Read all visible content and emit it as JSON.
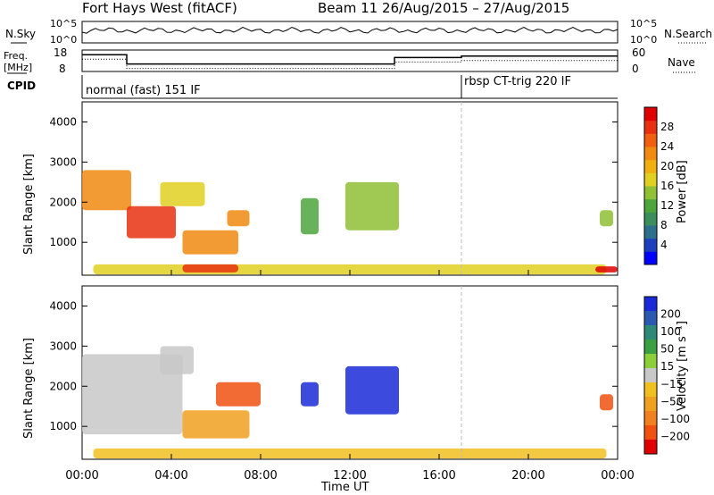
{
  "header": {
    "title": "Fort Hays West (fitACF)",
    "beam_info": "Beam 11 26/Aug/2015 – 27/Aug/2015"
  },
  "top_panels": {
    "nsky_label": "N.Sky",
    "nsearch_label": "N.Search",
    "freq_label_1": "Freq.",
    "freq_label_2": "[MHz]",
    "nave_label": "Nave",
    "cpid_label": "CPID",
    "noise_ticks": [
      "10^5",
      "10^0"
    ],
    "freq_ticks": [
      "18",
      "8"
    ],
    "nave_ticks": [
      "60",
      "0"
    ],
    "cpid_segments": [
      {
        "label": "normal (fast) 151 IF",
        "start_hour": 0
      },
      {
        "label": "rbsp CT-trig 220 IF",
        "start_hour": 17
      }
    ]
  },
  "axes": {
    "x_label": "Time UT",
    "x_ticks": [
      "00:00",
      "04:00",
      "08:00",
      "12:00",
      "16:00",
      "20:00",
      "00:00"
    ],
    "y_label": "Slant Range [km]",
    "y_ticks": [
      "1000",
      "2000",
      "3000",
      "4000"
    ]
  },
  "colorbars": {
    "power": {
      "label": "Power [dB]",
      "ticks": [
        "4",
        "8",
        "12",
        "16",
        "20",
        "24",
        "28"
      ],
      "colors": [
        "#0000ff",
        "#1d3fbd",
        "#2e6f8e",
        "#3a8f5a",
        "#4ea53c",
        "#8fc035",
        "#e0d020",
        "#f0b010",
        "#f08a10",
        "#f06010",
        "#e83010",
        "#e00000"
      ]
    },
    "velocity": {
      "label": "Velocity [m s⁻¹]",
      "ticks": [
        "200",
        "100",
        "50",
        "15",
        "−15",
        "−50",
        "−100",
        "−200"
      ],
      "colors": [
        "#1a2ad8",
        "#2a5ab0",
        "#2e8a78",
        "#3aa040",
        "#8ccf3a",
        "#c8c8c8",
        "#f0c020",
        "#f0a020",
        "#f08020",
        "#f05010",
        "#e00000"
      ]
    }
  },
  "chart_data": [
    {
      "type": "line",
      "title": "Fort Hays West (fitACF)",
      "xlabel": "",
      "ylabel": "N.Sky",
      "xlim": [
        0,
        24
      ],
      "series": [
        {
          "name": "Freq.",
          "x": [
            0,
            2,
            2,
            14,
            14,
            17,
            17,
            24
          ],
          "values": [
            15.8,
            15.8,
            11.5,
            11.5,
            14.5,
            14.5,
            15.2,
            15.2
          ]
        }
      ]
    },
    {
      "type": "heatmap",
      "xlabel": "Time UT",
      "ylabel": "Slant Range [km]",
      "xlim": [
        0,
        24
      ],
      "ylim": [
        180,
        4500
      ],
      "colorbar": "Power [dB]",
      "regions": [
        {
          "t0": 0.0,
          "t1": 2.2,
          "r0": 1800,
          "r1": 2800,
          "level": 20
        },
        {
          "t0": 2.0,
          "t1": 4.2,
          "r0": 1100,
          "r1": 1900,
          "level": 26
        },
        {
          "t0": 3.5,
          "t1": 5.5,
          "r0": 1900,
          "r1": 2500,
          "level": 16
        },
        {
          "t0": 4.5,
          "t1": 7.0,
          "r0": 700,
          "r1": 1300,
          "level": 22
        },
        {
          "t0": 6.5,
          "t1": 7.5,
          "r0": 1400,
          "r1": 1800,
          "level": 22
        },
        {
          "t0": 9.8,
          "t1": 10.6,
          "r0": 1200,
          "r1": 2100,
          "level": 10
        },
        {
          "t0": 11.8,
          "t1": 14.2,
          "r0": 1300,
          "r1": 2500,
          "level": 14
        },
        {
          "t0": 0.5,
          "t1": 23.5,
          "r0": 200,
          "r1": 450,
          "level": 16
        },
        {
          "t0": 4.5,
          "t1": 7.0,
          "r0": 250,
          "r1": 450,
          "level": 26
        },
        {
          "t0": 23.0,
          "t1": 24.0,
          "r0": 250,
          "r1": 400,
          "level": 28
        },
        {
          "t0": 23.2,
          "t1": 23.8,
          "r0": 1400,
          "r1": 1800,
          "level": 14
        }
      ]
    },
    {
      "type": "heatmap",
      "xlabel": "Time UT",
      "ylabel": "Slant Range [km]",
      "xlim": [
        0,
        24
      ],
      "ylim": [
        180,
        4500
      ],
      "colorbar": "Velocity [m s⁻¹]",
      "regions": [
        {
          "t0": 0.0,
          "t1": 4.5,
          "r0": 800,
          "r1": 2800,
          "level": 0
        },
        {
          "t0": 3.5,
          "t1": 5.0,
          "r0": 2300,
          "r1": 3000,
          "level": 0
        },
        {
          "t0": 6.0,
          "t1": 8.0,
          "r0": 1500,
          "r1": 2100,
          "level": -200
        },
        {
          "t0": 4.5,
          "t1": 7.5,
          "r0": 700,
          "r1": 1400,
          "level": -80
        },
        {
          "t0": 9.8,
          "t1": 10.6,
          "r0": 1500,
          "r1": 2100,
          "level": 200
        },
        {
          "t0": 11.8,
          "t1": 14.2,
          "r0": 1300,
          "r1": 2500,
          "level": 200
        },
        {
          "t0": 0.5,
          "t1": 23.5,
          "r0": 200,
          "r1": 450,
          "level": -30
        },
        {
          "t0": 23.2,
          "t1": 23.8,
          "r0": 1400,
          "r1": 1800,
          "level": -200
        }
      ]
    }
  ]
}
